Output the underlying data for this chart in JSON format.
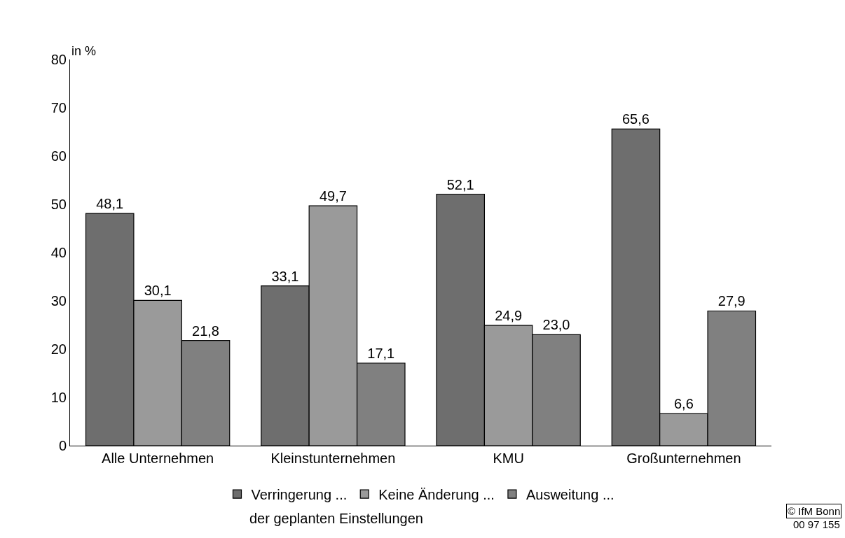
{
  "chart_data": {
    "type": "bar",
    "ylabel": "in %",
    "categories": [
      "Alle Unternehmen",
      "Kleinstunternehmen",
      "KMU",
      "Großunternehmen"
    ],
    "series": [
      {
        "name": "Verringerung ...",
        "color": "#6e6e6e",
        "values": [
          48.1,
          33.1,
          52.1,
          65.6
        ],
        "value_labels": [
          "48,1",
          "33,1",
          "52,1",
          "65,6"
        ]
      },
      {
        "name": "Keine Änderung ...",
        "color": "#9a9a9a",
        "values": [
          30.1,
          49.7,
          24.9,
          6.6
        ],
        "value_labels": [
          "30,1",
          "49,7",
          "24,9",
          "6,6"
        ]
      },
      {
        "name": "Ausweitung ...",
        "color": "#808080",
        "values": [
          21.8,
          17.1,
          23.0,
          27.9
        ],
        "value_labels": [
          "21,8",
          "17,1",
          "23,0",
          "27,9"
        ]
      }
    ],
    "ylim": [
      0,
      80
    ],
    "yticks": [
      0,
      10,
      20,
      30,
      40,
      50,
      60,
      70,
      80
    ],
    "legend": "bottom",
    "annotations": [
      "der geplanten Einstellungen",
      "© IfM Bonn",
      "00 97 155"
    ]
  }
}
